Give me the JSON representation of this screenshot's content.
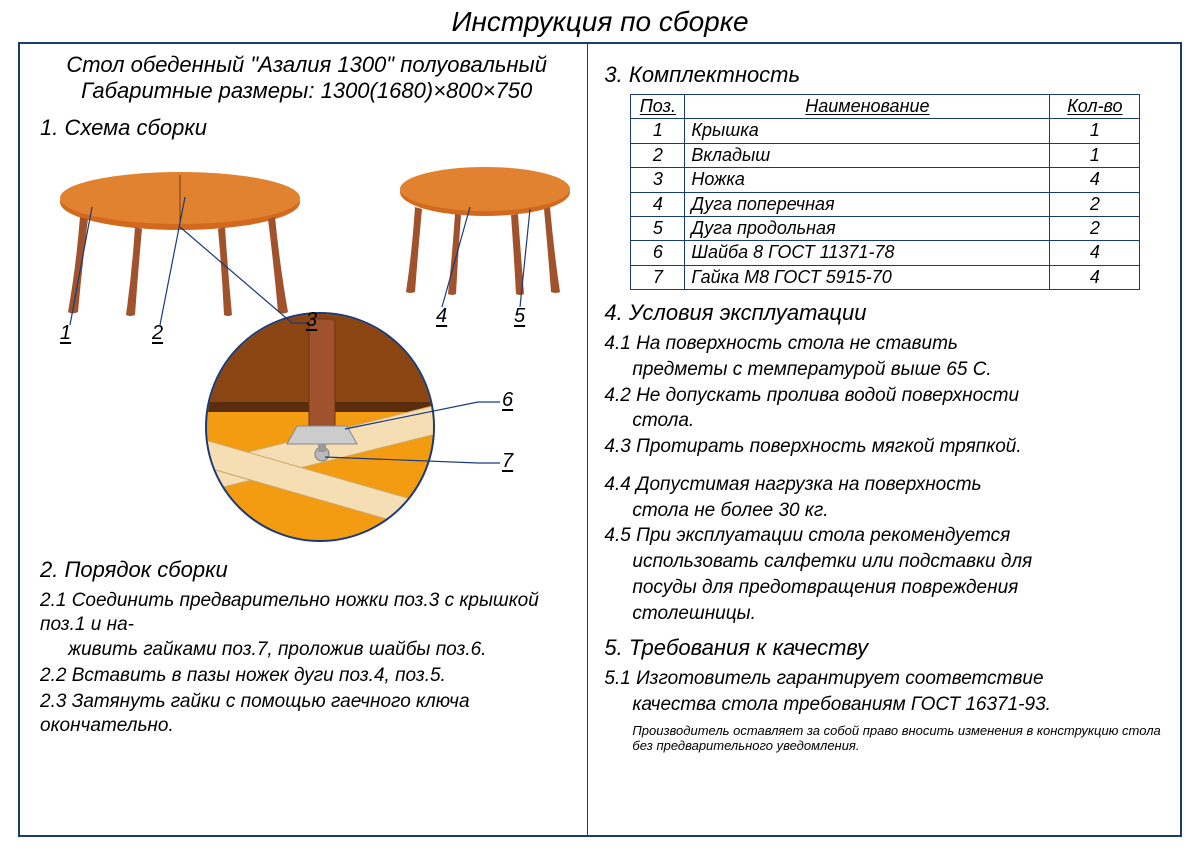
{
  "title": "Инструкция по сборке",
  "product": {
    "name": "Стол обеденный \"Азалия 1300\" полуовальный",
    "dimensions": "Габаритные размеры: 1300(1680)×800×750"
  },
  "sections": {
    "s1": "1. Схема сборки",
    "s2": "2. Порядок сборки",
    "s3": "3. Комплектность",
    "s4": "4. Условия эксплуатации",
    "s5": "5. Требования к качеству"
  },
  "callouts": {
    "c1": "1",
    "c2": "2",
    "c3": "3",
    "c4": "4",
    "c5": "5",
    "c6": "6",
    "c7": "7"
  },
  "assembly_steps": {
    "step1a": "2.1 Соединить предварительно ножки поз.3 с крышкой поз.1 и на-",
    "step1b": "живить гайками поз.7, проложив шайбы поз.6.",
    "step2": "2.2 Вставить в пазы ножек дуги поз.4, поз.5.",
    "step3": "2.3 Затянуть гайки с помощью гаечного ключа окончательно."
  },
  "parts_table": {
    "headers": {
      "pos": "Поз.",
      "name": "Наименование",
      "qty": "Кол-во"
    },
    "rows": [
      {
        "pos": "1",
        "name": "Крышка",
        "qty": "1"
      },
      {
        "pos": "2",
        "name": "Вкладыш",
        "qty": "1"
      },
      {
        "pos": "3",
        "name": "Ножка",
        "qty": "4"
      },
      {
        "pos": "4",
        "name": "Дуга поперечная",
        "qty": "2"
      },
      {
        "pos": "5",
        "name": "Дуга продольная",
        "qty": "2"
      },
      {
        "pos": "6",
        "name": "Шайба 8 ГОСТ 11371-78",
        "qty": "4"
      },
      {
        "pos": "7",
        "name": "Гайка М8 ГОСТ 5915-70",
        "qty": "4"
      }
    ]
  },
  "conditions": {
    "c1a": "4.1 На поверхность стола не ставить",
    "c1b": "предметы с температурой выше 65 С.",
    "c2a": "4.2 Не допускать пролива водой поверхности",
    "c2b": "стола.",
    "c3": "4.3 Протирать поверхность мягкой тряпкой.",
    "c4a": "4.4 Допустимая нагрузка на поверхность",
    "c4b": "стола не более 30 кг.",
    "c5a": "4.5 При эксплуатации стола рекомендуется",
    "c5b": "использовать салфетки или подставки для",
    "c5c": "посуды для предотвращения повреждения",
    "c5d": "столешницы."
  },
  "quality": {
    "q1a": "5.1 Изготовитель гарантирует соответствие",
    "q1b": "качества стола требованиям ГОСТ 16371-93."
  },
  "footnote": "Производитель оставляет за собой право вносить изменения в конструкцию стола без предварительного уведомления.",
  "colors": {
    "table_top": "#d2691e",
    "table_top_light": "#e0822f",
    "detail_fill": "#f39c12",
    "wood_light": "#f5deb3",
    "border": "#1a3a7a",
    "leg": "#a0522d"
  }
}
